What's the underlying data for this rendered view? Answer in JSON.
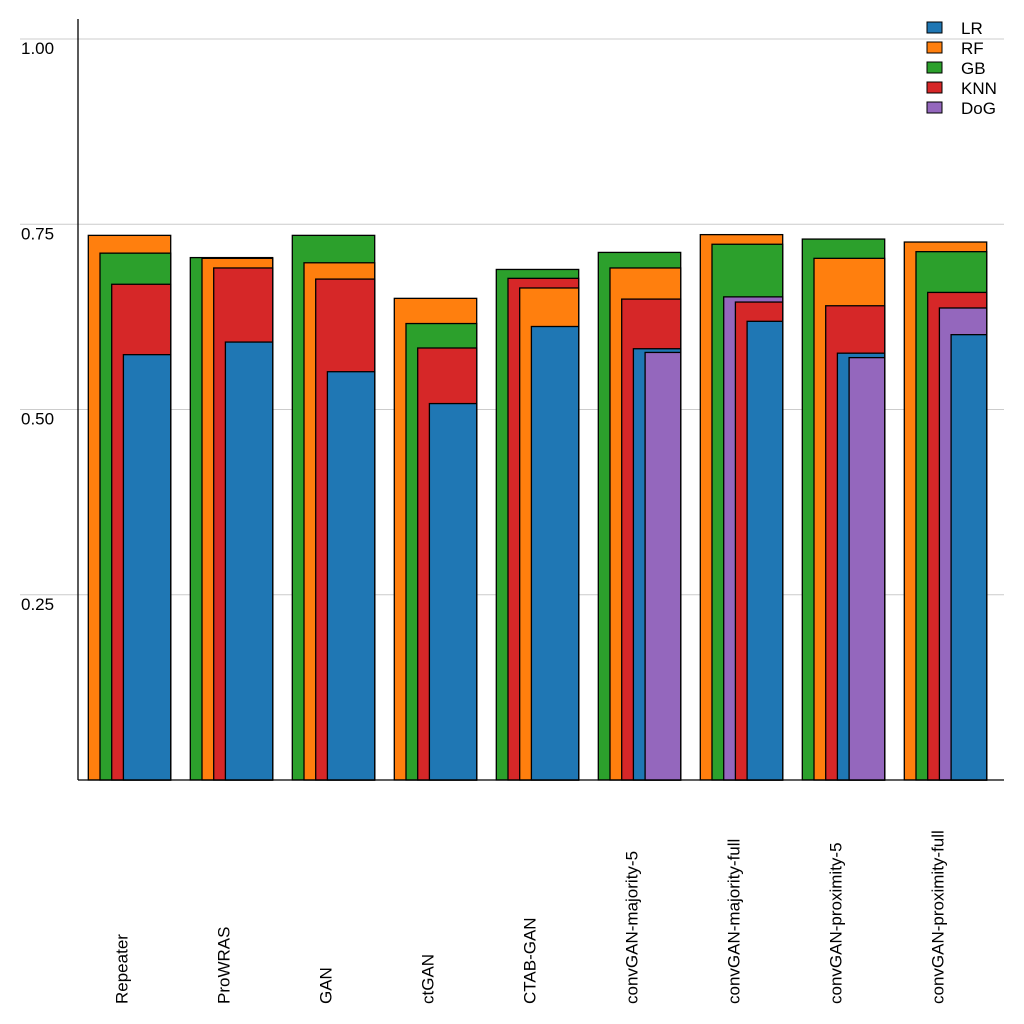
{
  "chart_data": {
    "type": "bar",
    "style": "nested-overlapping",
    "title": "",
    "xlabel": "",
    "ylabel": "",
    "ylim": [
      0,
      1.0
    ],
    "yticks": [
      0.25,
      0.5,
      0.75,
      1.0
    ],
    "ytick_labels": [
      "0.25",
      "0.50",
      "0.75",
      "1.00"
    ],
    "grid": "horizontal",
    "legend_position": "top-right",
    "categories": [
      "Repeater",
      "ProWRAS",
      "GAN",
      "ctGAN",
      "CTAB-GAN",
      "convGAN-majority-5",
      "convGAN-majority-full",
      "convGAN-proximity-5",
      "convGAN-proximity-full"
    ],
    "series": [
      {
        "name": "LR",
        "color": "#1f77b4",
        "values": [
          0.574,
          0.591,
          0.551,
          0.508,
          0.612,
          0.582,
          0.619,
          0.576,
          0.601
        ]
      },
      {
        "name": "RF",
        "color": "#ff7f0e",
        "values": [
          0.735,
          0.704,
          0.698,
          0.65,
          0.664,
          0.691,
          0.736,
          0.704,
          0.726
        ]
      },
      {
        "name": "GB",
        "color": "#2ca02c",
        "values": [
          0.711,
          0.705,
          0.735,
          0.616,
          0.689,
          0.712,
          0.723,
          0.73,
          0.713
        ]
      },
      {
        "name": "KNN",
        "color": "#d62728",
        "values": [
          0.669,
          0.691,
          0.676,
          0.583,
          0.677,
          0.649,
          0.645,
          0.64,
          0.658
        ]
      },
      {
        "name": "DoG",
        "color": "#9467bd",
        "values": [
          null,
          null,
          null,
          null,
          null,
          0.577,
          0.652,
          0.57,
          0.637
        ]
      }
    ]
  }
}
